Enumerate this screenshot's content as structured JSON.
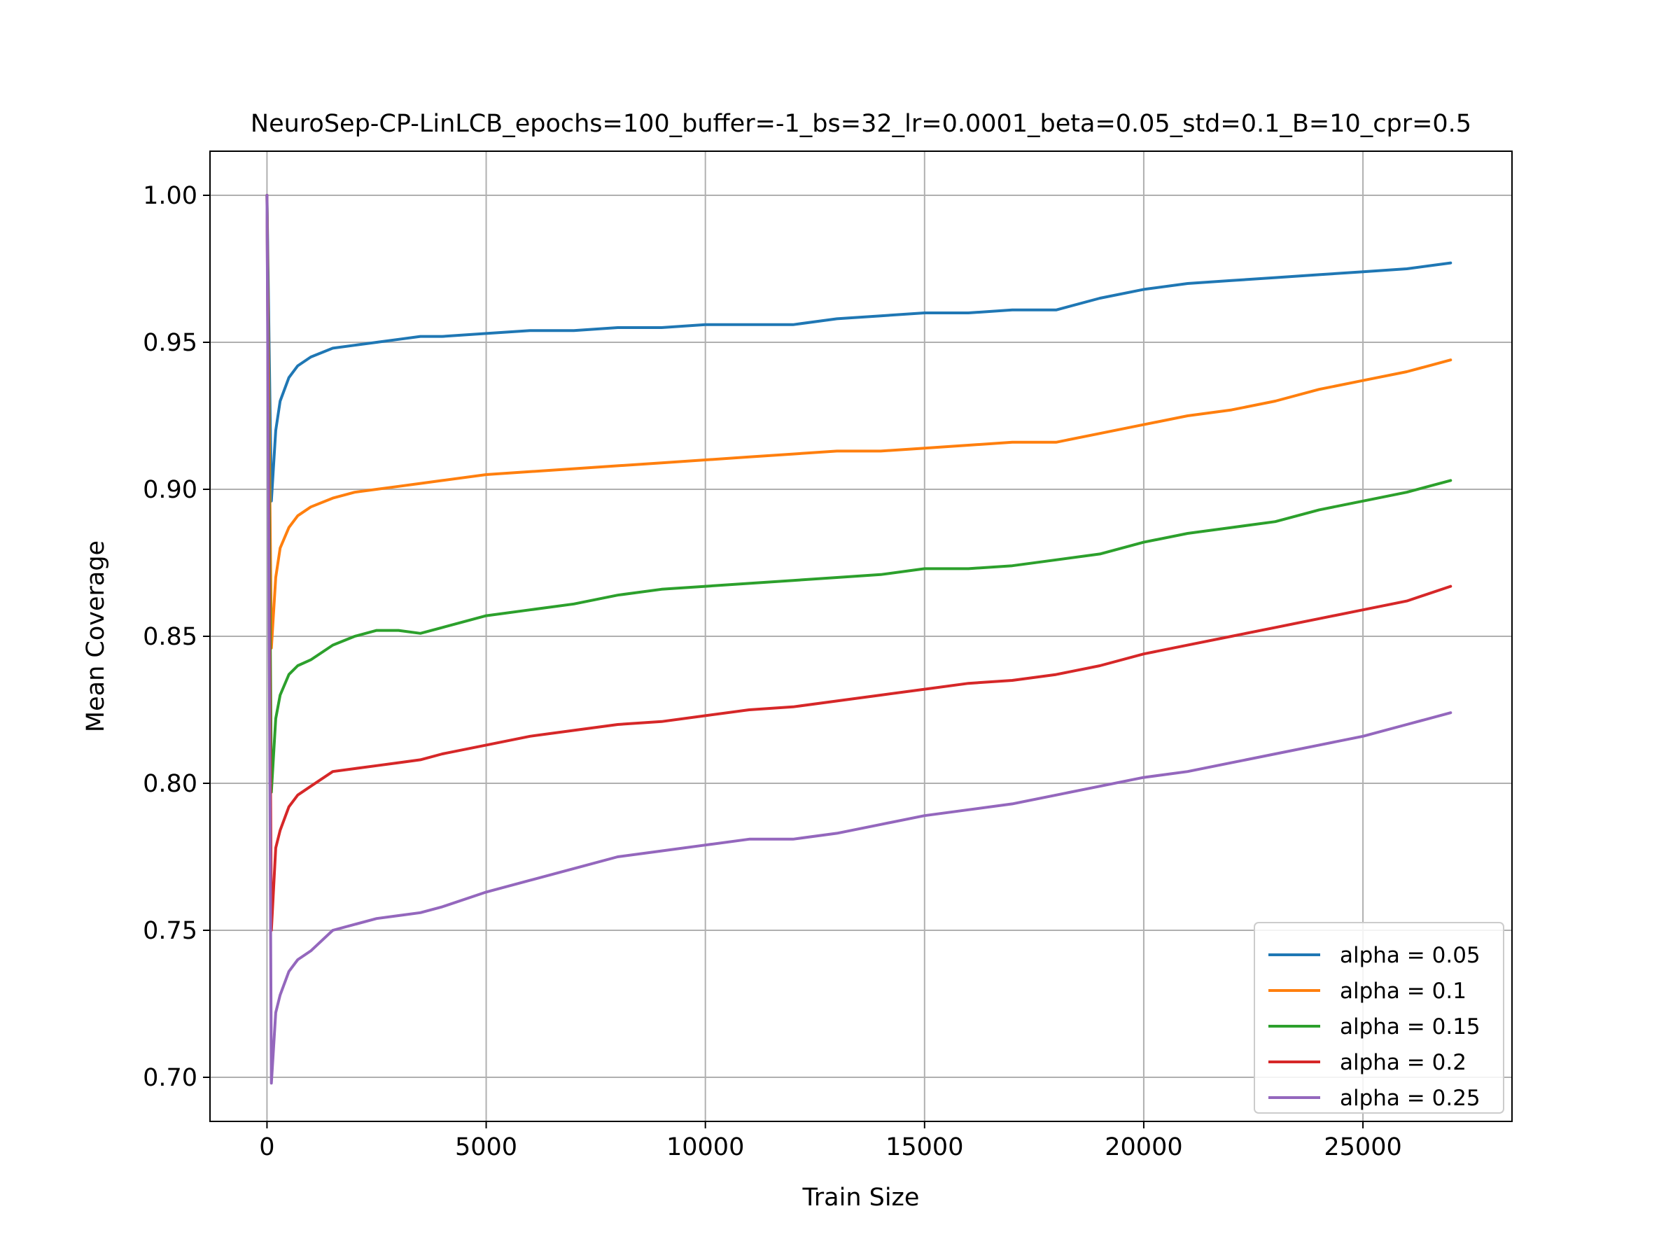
{
  "chart_data": {
    "type": "line",
    "title": "NeuroSep-CP-LinLCB_epochs=100_buffer=-1_bs=32_lr=0.0001_beta=0.05_std=0.1_B=10_cpr=0.5",
    "xlabel": "Train Size",
    "ylabel": "Mean Coverage",
    "xlim": [
      -1300,
      28400
    ],
    "ylim": [
      0.685,
      1.015
    ],
    "xticks": [
      0,
      5000,
      10000,
      15000,
      20000,
      25000
    ],
    "xtick_labels": [
      "0",
      "5000",
      "10000",
      "15000",
      "20000",
      "25000"
    ],
    "yticks": [
      0.7,
      0.75,
      0.8,
      0.85,
      0.9,
      0.95,
      1.0
    ],
    "ytick_labels": [
      "0.70",
      "0.75",
      "0.80",
      "0.85",
      "0.90",
      "0.95",
      "1.00"
    ],
    "grid": true,
    "legend_position": "lower-right",
    "series": [
      {
        "name": "alpha = 0.05",
        "color": "#1f77b4",
        "x": [
          0,
          100,
          200,
          300,
          500,
          700,
          1000,
          1500,
          2000,
          2500,
          3000,
          3500,
          4000,
          5000,
          6000,
          7000,
          8000,
          9000,
          10000,
          11000,
          12000,
          13000,
          14000,
          15000,
          16000,
          17000,
          18000,
          19000,
          20000,
          21000,
          22000,
          23000,
          24000,
          25000,
          26000,
          27000
        ],
        "y": [
          1.0,
          0.896,
          0.92,
          0.93,
          0.938,
          0.942,
          0.945,
          0.948,
          0.949,
          0.95,
          0.951,
          0.952,
          0.952,
          0.953,
          0.954,
          0.954,
          0.955,
          0.955,
          0.956,
          0.956,
          0.956,
          0.958,
          0.959,
          0.96,
          0.96,
          0.961,
          0.961,
          0.965,
          0.968,
          0.97,
          0.971,
          0.972,
          0.973,
          0.974,
          0.975,
          0.977
        ]
      },
      {
        "name": "alpha = 0.1",
        "color": "#ff7f0e",
        "x": [
          0,
          100,
          200,
          300,
          500,
          700,
          1000,
          1500,
          2000,
          2500,
          3000,
          3500,
          4000,
          5000,
          6000,
          7000,
          8000,
          9000,
          10000,
          11000,
          12000,
          13000,
          14000,
          15000,
          16000,
          17000,
          18000,
          19000,
          20000,
          21000,
          22000,
          23000,
          24000,
          25000,
          26000,
          27000
        ],
        "y": [
          1.0,
          0.846,
          0.87,
          0.88,
          0.887,
          0.891,
          0.894,
          0.897,
          0.899,
          0.9,
          0.901,
          0.902,
          0.903,
          0.905,
          0.906,
          0.907,
          0.908,
          0.909,
          0.91,
          0.911,
          0.912,
          0.913,
          0.913,
          0.914,
          0.915,
          0.916,
          0.916,
          0.919,
          0.922,
          0.925,
          0.927,
          0.93,
          0.934,
          0.937,
          0.94,
          0.944
        ]
      },
      {
        "name": "alpha = 0.15",
        "color": "#2ca02c",
        "x": [
          0,
          100,
          200,
          300,
          500,
          700,
          1000,
          1500,
          2000,
          2500,
          3000,
          3500,
          4000,
          5000,
          6000,
          7000,
          8000,
          9000,
          10000,
          11000,
          12000,
          13000,
          14000,
          15000,
          16000,
          17000,
          18000,
          19000,
          20000,
          21000,
          22000,
          23000,
          24000,
          25000,
          26000,
          27000
        ],
        "y": [
          1.0,
          0.797,
          0.822,
          0.83,
          0.837,
          0.84,
          0.842,
          0.847,
          0.85,
          0.852,
          0.852,
          0.851,
          0.853,
          0.857,
          0.859,
          0.861,
          0.864,
          0.866,
          0.867,
          0.868,
          0.869,
          0.87,
          0.871,
          0.873,
          0.873,
          0.874,
          0.876,
          0.878,
          0.882,
          0.885,
          0.887,
          0.889,
          0.893,
          0.896,
          0.899,
          0.903
        ]
      },
      {
        "name": "alpha = 0.2",
        "color": "#d62728",
        "x": [
          0,
          100,
          200,
          300,
          500,
          700,
          1000,
          1500,
          2000,
          2500,
          3000,
          3500,
          4000,
          5000,
          6000,
          7000,
          8000,
          9000,
          10000,
          11000,
          12000,
          13000,
          14000,
          15000,
          16000,
          17000,
          18000,
          19000,
          20000,
          21000,
          22000,
          23000,
          24000,
          25000,
          26000,
          27000
        ],
        "y": [
          1.0,
          0.75,
          0.778,
          0.784,
          0.792,
          0.796,
          0.799,
          0.804,
          0.805,
          0.806,
          0.807,
          0.808,
          0.81,
          0.813,
          0.816,
          0.818,
          0.82,
          0.821,
          0.823,
          0.825,
          0.826,
          0.828,
          0.83,
          0.832,
          0.834,
          0.835,
          0.837,
          0.84,
          0.844,
          0.847,
          0.85,
          0.853,
          0.856,
          0.859,
          0.862,
          0.867
        ]
      },
      {
        "name": "alpha = 0.25",
        "color": "#9467bd",
        "x": [
          0,
          100,
          200,
          300,
          500,
          700,
          1000,
          1500,
          2000,
          2500,
          3000,
          3500,
          4000,
          5000,
          6000,
          7000,
          8000,
          9000,
          10000,
          11000,
          12000,
          13000,
          14000,
          15000,
          16000,
          17000,
          18000,
          19000,
          20000,
          21000,
          22000,
          23000,
          24000,
          25000,
          26000,
          27000
        ],
        "y": [
          1.0,
          0.698,
          0.722,
          0.728,
          0.736,
          0.74,
          0.743,
          0.75,
          0.752,
          0.754,
          0.755,
          0.756,
          0.758,
          0.763,
          0.767,
          0.771,
          0.775,
          0.777,
          0.779,
          0.781,
          0.781,
          0.783,
          0.786,
          0.789,
          0.791,
          0.793,
          0.796,
          0.799,
          0.802,
          0.804,
          0.807,
          0.81,
          0.813,
          0.816,
          0.82,
          0.824
        ]
      }
    ]
  }
}
